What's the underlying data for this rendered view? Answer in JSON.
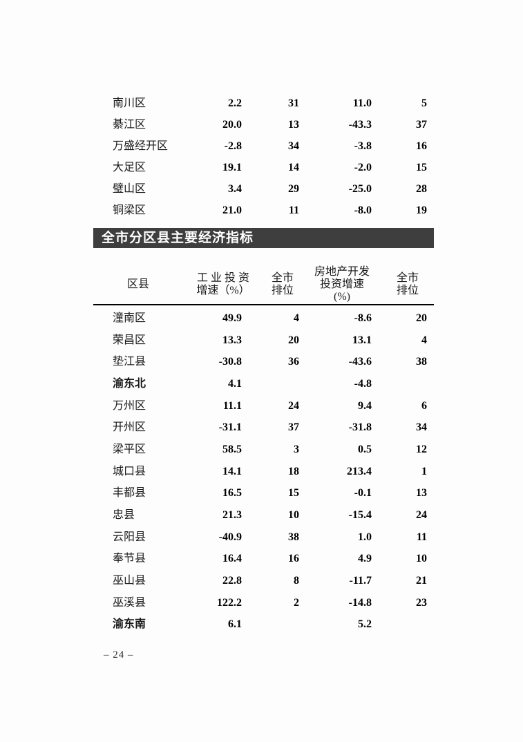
{
  "colors": {
    "section_bar_bg": "#3e3e3e",
    "section_bar_text": "#ffffff",
    "body_text": "#1a1a1a",
    "rule": "#000000"
  },
  "section": {
    "title": "全市分区县主要经济指标"
  },
  "table_top": {
    "rows": [
      {
        "region": "南川区",
        "industry_growth": "2.2",
        "industry_rank": "31",
        "realestate_growth": "11.0",
        "realestate_rank": "5"
      },
      {
        "region": "綦江区",
        "industry_growth": "20.0",
        "industry_rank": "13",
        "realestate_growth": "-43.3",
        "realestate_rank": "37"
      },
      {
        "region": "万盛经开区",
        "industry_growth": "-2.8",
        "industry_rank": "34",
        "realestate_growth": "-3.8",
        "realestate_rank": "16"
      },
      {
        "region": "大足区",
        "industry_growth": "19.1",
        "industry_rank": "14",
        "realestate_growth": "-2.0",
        "realestate_rank": "15"
      },
      {
        "region": "璧山区",
        "industry_growth": "3.4",
        "industry_rank": "29",
        "realestate_growth": "-25.0",
        "realestate_rank": "28"
      },
      {
        "region": "铜梁区",
        "industry_growth": "21.0",
        "industry_rank": "11",
        "realestate_growth": "-8.0",
        "realestate_rank": "19"
      }
    ]
  },
  "table_main": {
    "headers": {
      "region": "区县",
      "industry_line1": "工 业 投 资",
      "industry_line2": "增速（%）",
      "rank1_line1": "全市",
      "rank1_line2": "排位",
      "realestate_line1": "房地产开发",
      "realestate_line2": "投资增速",
      "realestate_line3": "(%)",
      "rank2_line1": "全市",
      "rank2_line2": "排位"
    },
    "rows": [
      {
        "region": "潼南区",
        "industry_growth": "49.9",
        "industry_rank": "4",
        "realestate_growth": "-8.6",
        "realestate_rank": "20"
      },
      {
        "region": "荣昌区",
        "industry_growth": "13.3",
        "industry_rank": "20",
        "realestate_growth": "13.1",
        "realestate_rank": "4"
      },
      {
        "region": "垫江县",
        "industry_growth": "-30.8",
        "industry_rank": "36",
        "realestate_growth": "-43.6",
        "realestate_rank": "38"
      },
      {
        "region": "渝东北",
        "industry_growth": "4.1",
        "industry_rank": "",
        "realestate_growth": "-4.8",
        "realestate_rank": ""
      },
      {
        "region": "万州区",
        "industry_growth": "11.1",
        "industry_rank": "24",
        "realestate_growth": "9.4",
        "realestate_rank": "6"
      },
      {
        "region": "开州区",
        "industry_growth": "-31.1",
        "industry_rank": "37",
        "realestate_growth": "-31.8",
        "realestate_rank": "34"
      },
      {
        "region": "梁平区",
        "industry_growth": "58.5",
        "industry_rank": "3",
        "realestate_growth": "0.5",
        "realestate_rank": "12"
      },
      {
        "region": "城口县",
        "industry_growth": "14.1",
        "industry_rank": "18",
        "realestate_growth": "213.4",
        "realestate_rank": "1"
      },
      {
        "region": "丰都县",
        "industry_growth": "16.5",
        "industry_rank": "15",
        "realestate_growth": "-0.1",
        "realestate_rank": "13"
      },
      {
        "region": "忠县",
        "industry_growth": "21.3",
        "industry_rank": "10",
        "realestate_growth": "-15.4",
        "realestate_rank": "24"
      },
      {
        "region": "云阳县",
        "industry_growth": "-40.9",
        "industry_rank": "38",
        "realestate_growth": "1.0",
        "realestate_rank": "11"
      },
      {
        "region": "奉节县",
        "industry_growth": "16.4",
        "industry_rank": "16",
        "realestate_growth": "4.9",
        "realestate_rank": "10"
      },
      {
        "region": "巫山县",
        "industry_growth": "22.8",
        "industry_rank": "8",
        "realestate_growth": "-11.7",
        "realestate_rank": "21"
      },
      {
        "region": "巫溪县",
        "industry_growth": "122.2",
        "industry_rank": "2",
        "realestate_growth": "-14.8",
        "realestate_rank": "23"
      },
      {
        "region": "渝东南",
        "industry_growth": "6.1",
        "industry_rank": "",
        "realestate_growth": "5.2",
        "realestate_rank": ""
      }
    ]
  },
  "footer": {
    "page_number": "– 24 –"
  }
}
